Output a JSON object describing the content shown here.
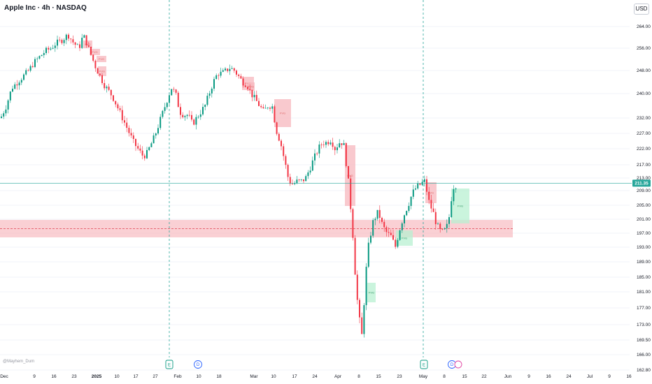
{
  "header": {
    "title": "Apple Inc · 4h · NASDAQ",
    "currency": "USD"
  },
  "watermark": "@Mayhem_Dum",
  "colors": {
    "up": "#089981",
    "down": "#f23645",
    "zone_red": "#f7b7bd",
    "zone_green": "#b8f0d2",
    "price_line": "#26a69a",
    "dash_line": "#e04050"
  },
  "chart_data": {
    "type": "candlestick",
    "title": "Apple Inc · 4h · NASDAQ",
    "y_ticks": [
      "264.00",
      "256.00",
      "248.00",
      "240.00",
      "232.00",
      "227.00",
      "222.00",
      "217.00",
      "213.00",
      "209.00",
      "205.00",
      "201.00",
      "197.00",
      "193.00",
      "189.00",
      "185.00",
      "181.00",
      "177.00",
      "173.00",
      "169.50",
      "166.00",
      "162.80"
    ],
    "x_ticks": [
      "Dec",
      "9",
      "16",
      "23",
      "2025",
      "10",
      "17",
      "27",
      "Feb",
      "10",
      "18",
      "Mar",
      "10",
      "17",
      "24",
      "Apr",
      "8",
      "15",
      "23",
      "May",
      "8",
      "15",
      "22",
      "Jun",
      "9",
      "16",
      "24",
      "Jul",
      "9",
      "16"
    ],
    "last_price": "211.35",
    "support_zone": [
      195.8,
      200.8
    ],
    "support_line": 198.3,
    "events": [
      {
        "label": "E",
        "date": "Jan 30"
      },
      {
        "label": "D",
        "date": "Feb 10"
      },
      {
        "label": "E",
        "date": "May 1"
      },
      {
        "label": "D",
        "date": "May 12"
      }
    ],
    "fvg_zones": [
      {
        "label": "FVG",
        "kind": "bearish"
      },
      {
        "label": "FVG",
        "kind": "bearish"
      },
      {
        "label": "FVG",
        "kind": "bearish"
      },
      {
        "label": "FVG",
        "kind": "bearish"
      },
      {
        "label": "FVG",
        "kind": "bearish"
      },
      {
        "label": "FVG",
        "kind": "bearish"
      },
      {
        "label": "FVG",
        "kind": "bearish"
      },
      {
        "label": "FVG",
        "kind": "bearish"
      },
      {
        "label": "FVG",
        "kind": "bullish"
      },
      {
        "label": "FVG",
        "kind": "bullish"
      },
      {
        "label": "FVG",
        "kind": "bullish"
      }
    ],
    "path": [
      [
        0,
        232
      ],
      [
        8,
        236
      ],
      [
        16,
        242
      ],
      [
        24,
        244
      ],
      [
        32,
        246
      ],
      [
        40,
        248
      ],
      [
        48,
        251
      ],
      [
        56,
        253
      ],
      [
        64,
        255
      ],
      [
        72,
        256
      ],
      [
        80,
        258
      ],
      [
        88,
        259
      ],
      [
        96,
        261
      ],
      [
        104,
        258
      ],
      [
        112,
        256
      ],
      [
        118,
        261
      ],
      [
        124,
        257
      ],
      [
        130,
        253
      ],
      [
        136,
        249
      ],
      [
        142,
        246
      ],
      [
        148,
        243
      ],
      [
        154,
        241
      ],
      [
        160,
        239
      ],
      [
        166,
        236
      ],
      [
        172,
        233
      ],
      [
        178,
        230
      ],
      [
        184,
        227
      ],
      [
        190,
        224
      ],
      [
        196,
        222
      ],
      [
        202,
        220
      ],
      [
        208,
        220
      ],
      [
        214,
        223
      ],
      [
        220,
        226
      ],
      [
        226,
        230
      ],
      [
        232,
        234
      ],
      [
        238,
        238
      ],
      [
        244,
        242
      ],
      [
        250,
        240
      ],
      [
        256,
        234
      ],
      [
        262,
        233
      ],
      [
        268,
        233
      ],
      [
        274,
        230
      ],
      [
        280,
        232
      ],
      [
        286,
        234
      ],
      [
        292,
        236
      ],
      [
        298,
        240
      ],
      [
        304,
        244
      ],
      [
        310,
        247
      ],
      [
        316,
        247
      ],
      [
        322,
        248
      ],
      [
        328,
        249
      ],
      [
        334,
        248
      ],
      [
        340,
        246
      ],
      [
        346,
        244
      ],
      [
        352,
        243
      ],
      [
        358,
        240
      ],
      [
        364,
        238
      ],
      [
        370,
        236
      ],
      [
        376,
        234
      ],
      [
        382,
        236
      ],
      [
        388,
        236
      ],
      [
        394,
        228
      ],
      [
        400,
        224
      ],
      [
        406,
        218
      ],
      [
        412,
        212
      ],
      [
        418,
        211
      ],
      [
        424,
        212
      ],
      [
        430,
        212
      ],
      [
        436,
        213
      ],
      [
        442,
        216
      ],
      [
        448,
        219
      ],
      [
        454,
        222
      ],
      [
        460,
        224
      ],
      [
        466,
        224
      ],
      [
        472,
        225
      ],
      [
        478,
        222
      ],
      [
        484,
        224
      ],
      [
        490,
        224
      ],
      [
        496,
        214
      ],
      [
        500,
        205
      ],
      [
        504,
        195
      ],
      [
        508,
        182
      ],
      [
        512,
        175
      ],
      [
        516,
        170
      ],
      [
        520,
        180
      ],
      [
        524,
        191
      ],
      [
        528,
        196
      ],
      [
        532,
        200
      ],
      [
        536,
        202
      ],
      [
        540,
        203
      ],
      [
        546,
        199
      ],
      [
        552,
        197
      ],
      [
        558,
        196
      ],
      [
        564,
        193
      ],
      [
        570,
        198
      ],
      [
        576,
        202
      ],
      [
        582,
        205
      ],
      [
        588,
        208
      ],
      [
        594,
        210
      ],
      [
        600,
        211
      ],
      [
        606,
        212
      ],
      [
        612,
        206
      ],
      [
        618,
        203
      ],
      [
        624,
        199
      ],
      [
        630,
        197
      ],
      [
        636,
        198
      ],
      [
        640,
        200
      ],
      [
        646,
        210
      ],
      [
        652,
        211
      ]
    ]
  }
}
